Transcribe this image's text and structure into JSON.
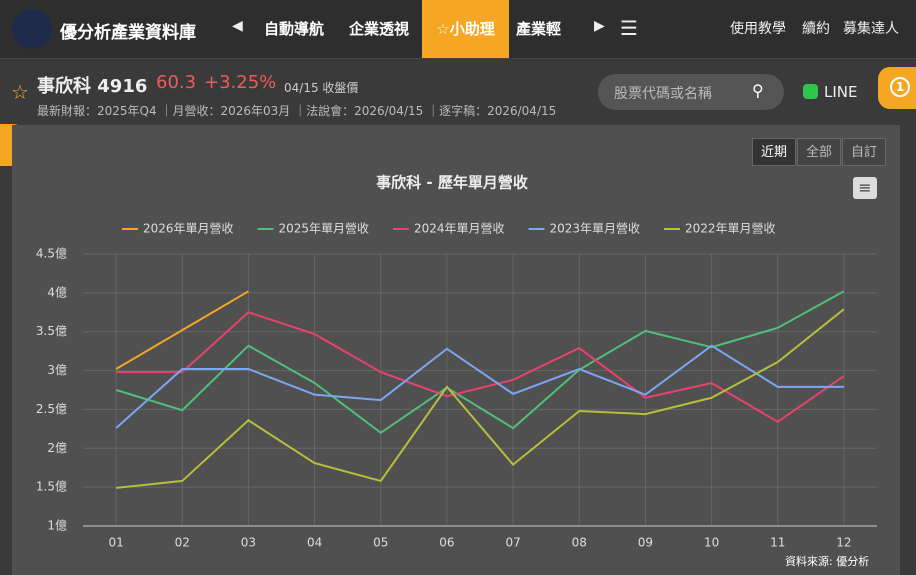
{
  "nav": {
    "brand": "優分析產業資料庫",
    "items": [
      "自動導航",
      "企業透視",
      "小助理",
      "產業輕"
    ],
    "links": [
      "使用教學",
      "續約",
      "募集達人"
    ]
  },
  "stock": {
    "name": "事欣科",
    "code": "4916",
    "price": 60.3,
    "change": "+3.25%",
    "date": "04/15 收盤價",
    "info": [
      "最新財報：2025年Q4",
      "月營收：2026年03月",
      "法說會：2026/04/15",
      "逐字稿：2026/04/15"
    ]
  },
  "search": {
    "placeholder": "股票代碼或名稱"
  },
  "line_button": "LINE",
  "badge": "1",
  "range_buttons": [
    "近期",
    "全部",
    "自訂"
  ],
  "source": "資料來源: 優分析",
  "chart_data": {
    "type": "line",
    "title": "事欣科 - 歷年單月營收",
    "categories": [
      "01",
      "02",
      "03",
      "04",
      "05",
      "06",
      "07",
      "08",
      "09",
      "10",
      "11",
      "12"
    ],
    "ylim": [
      1,
      4.5
    ],
    "yticks": [
      {
        "value": 1,
        "label": "1億"
      },
      {
        "value": 1.5,
        "label": "1.5億"
      },
      {
        "value": 2,
        "label": "2億"
      },
      {
        "value": 2.5,
        "label": "2.5億"
      },
      {
        "value": 3,
        "label": "3億"
      },
      {
        "value": 3.5,
        "label": "3.5億"
      },
      {
        "value": 4,
        "label": "4億"
      },
      {
        "value": 4.5,
        "label": "4.5億"
      }
    ],
    "grid": true,
    "legend": "top",
    "series": [
      {
        "name": "2026年單月營收",
        "color": "#f5a623",
        "values": [
          3.02,
          3.52,
          4.02,
          null,
          null,
          null,
          null,
          null,
          null,
          null,
          null,
          null
        ]
      },
      {
        "name": "2025年單月營收",
        "color": "#4fbf7a",
        "values": [
          2.75,
          2.49,
          3.32,
          2.84,
          2.2,
          2.78,
          2.26,
          3.01,
          3.51,
          3.3,
          3.55,
          4.02
        ]
      },
      {
        "name": "2024年單月營收",
        "color": "#e8426f",
        "values": [
          2.98,
          2.98,
          3.75,
          3.47,
          2.98,
          2.67,
          2.88,
          3.29,
          2.65,
          2.84,
          2.34,
          2.93
        ]
      },
      {
        "name": "2023年單月營收",
        "color": "#7aa7f0",
        "values": [
          2.26,
          3.02,
          3.02,
          2.69,
          2.62,
          3.28,
          2.7,
          3.02,
          2.69,
          3.32,
          2.79,
          2.79
        ]
      },
      {
        "name": "2022年單月營收",
        "color": "#b5bf3a",
        "values": [
          1.49,
          1.58,
          2.36,
          1.81,
          1.58,
          2.79,
          1.79,
          2.48,
          2.44,
          2.65,
          3.11,
          3.79
        ]
      }
    ]
  }
}
